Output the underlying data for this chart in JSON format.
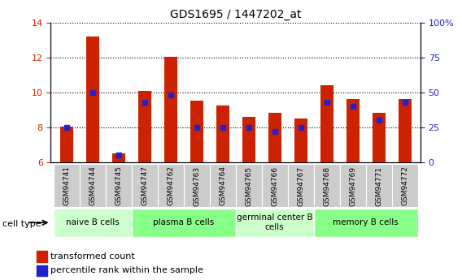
{
  "title": "GDS1695 / 1447202_at",
  "samples": [
    "GSM94741",
    "GSM94744",
    "GSM94745",
    "GSM94747",
    "GSM94762",
    "GSM94763",
    "GSM94764",
    "GSM94765",
    "GSM94766",
    "GSM94767",
    "GSM94768",
    "GSM94769",
    "GSM94771",
    "GSM94772"
  ],
  "transformed_count": [
    8.05,
    13.2,
    6.5,
    10.1,
    12.05,
    9.55,
    9.25,
    8.6,
    8.85,
    8.5,
    10.4,
    9.6,
    8.85,
    9.6
  ],
  "percentile_rank": [
    25,
    50,
    5,
    43,
    48,
    25,
    25,
    25,
    22,
    25,
    43,
    40,
    30,
    43
  ],
  "ylim": [
    6,
    14
  ],
  "yticks": [
    6,
    8,
    10,
    12,
    14
  ],
  "y2lim": [
    0,
    100
  ],
  "y2ticks": [
    0,
    25,
    50,
    75,
    100
  ],
  "y2ticklabels": [
    "0",
    "25",
    "50",
    "75",
    "100%"
  ],
  "bar_color": "#cc2200",
  "dot_color": "#2222cc",
  "groups": [
    {
      "label": "naive B cells",
      "start": 0,
      "end": 3,
      "color": "#ccffcc"
    },
    {
      "label": "plasma B cells",
      "start": 3,
      "end": 7,
      "color": "#88ff88"
    },
    {
      "label": "germinal center B\ncells",
      "start": 7,
      "end": 10,
      "color": "#ccffcc"
    },
    {
      "label": "memory B cells",
      "start": 10,
      "end": 14,
      "color": "#88ff88"
    }
  ],
  "tick_bg_color": "#cccccc",
  "legend_red_label": "transformed count",
  "legend_blue_label": "percentile rank within the sample",
  "cell_type_label": "cell type",
  "bar_width": 0.5
}
